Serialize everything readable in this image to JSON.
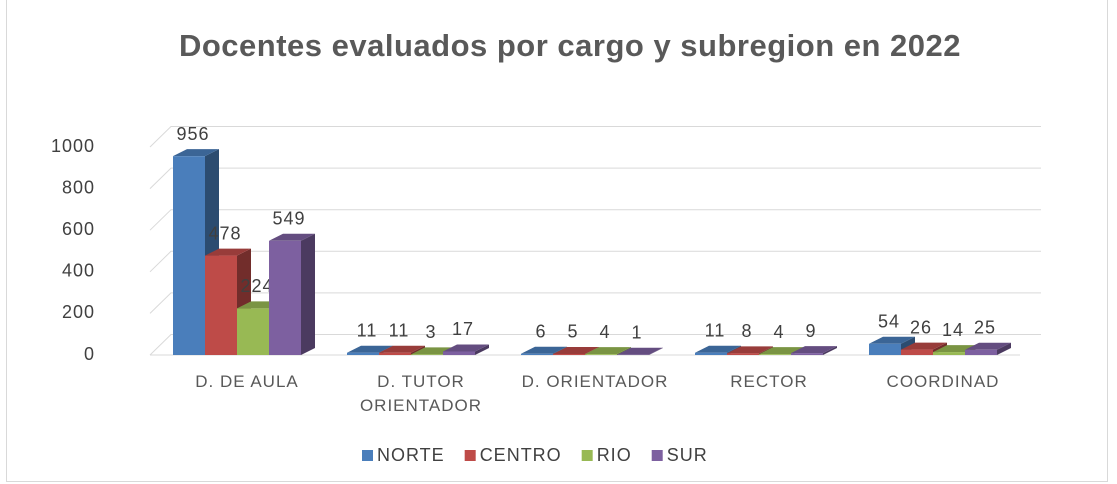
{
  "chart_data": {
    "type": "bar3d",
    "title": "Docentes evaluados por cargo y subregion en 2022",
    "categories": [
      "D. DE AULA",
      "D. TUTOR ORIENTADOR",
      "D. ORIENTADOR",
      "RECTOR",
      "COORDINAD"
    ],
    "series": [
      {
        "name": "NORTE",
        "color": "#4a7ebb",
        "values": [
          956,
          11,
          6,
          11,
          54
        ]
      },
      {
        "name": "CENTRO",
        "color": "#be4b48",
        "values": [
          478,
          11,
          5,
          8,
          26
        ]
      },
      {
        "name": "RIO",
        "color": "#98b954",
        "values": [
          224,
          3,
          4,
          4,
          14
        ]
      },
      {
        "name": "SUR",
        "color": "#7d60a0",
        "values": [
          549,
          17,
          1,
          9,
          25
        ]
      }
    ],
    "ylim": [
      0,
      1000
    ],
    "yticks": [
      0,
      200,
      400,
      600,
      800,
      1000
    ],
    "grid": true,
    "legend": "bottom"
  }
}
